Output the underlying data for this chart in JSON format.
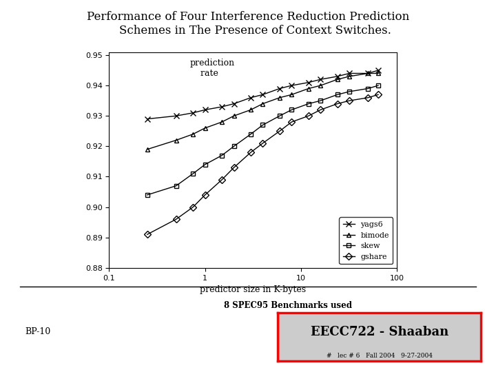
{
  "title": "Performance of Four Interference Reduction Prediction\n    Schemes in The Presence of Context Switches.",
  "xlabel": "predictor size in K-bytes",
  "xlim": [
    0.1,
    100
  ],
  "ylim": [
    0.88,
    0.951
  ],
  "yticks": [
    0.88,
    0.89,
    0.9,
    0.91,
    0.92,
    0.93,
    0.94,
    0.95
  ],
  "yags6": {
    "x": [
      0.25,
      0.5,
      0.75,
      1.0,
      1.5,
      2.0,
      3.0,
      4.0,
      6.0,
      8.0,
      12.0,
      16.0,
      24.0,
      32.0,
      50.0,
      64.0
    ],
    "y": [
      0.929,
      0.93,
      0.931,
      0.932,
      0.933,
      0.934,
      0.936,
      0.937,
      0.939,
      0.94,
      0.941,
      0.942,
      0.943,
      0.944,
      0.944,
      0.945
    ],
    "label": "yags6"
  },
  "bimode": {
    "x": [
      0.25,
      0.5,
      0.75,
      1.0,
      1.5,
      2.0,
      3.0,
      4.0,
      6.0,
      8.0,
      12.0,
      16.0,
      24.0,
      32.0,
      50.0,
      64.0
    ],
    "y": [
      0.919,
      0.922,
      0.924,
      0.926,
      0.928,
      0.93,
      0.932,
      0.934,
      0.936,
      0.937,
      0.939,
      0.94,
      0.942,
      0.943,
      0.944,
      0.944
    ],
    "label": "bimode"
  },
  "skew": {
    "x": [
      0.25,
      0.5,
      0.75,
      1.0,
      1.5,
      2.0,
      3.0,
      4.0,
      6.0,
      8.0,
      12.0,
      16.0,
      24.0,
      32.0,
      50.0,
      64.0
    ],
    "y": [
      0.904,
      0.907,
      0.911,
      0.914,
      0.917,
      0.92,
      0.924,
      0.927,
      0.93,
      0.932,
      0.934,
      0.935,
      0.937,
      0.938,
      0.939,
      0.94
    ],
    "label": "skew"
  },
  "gshare": {
    "x": [
      0.25,
      0.5,
      0.75,
      1.0,
      1.5,
      2.0,
      3.0,
      4.0,
      6.0,
      8.0,
      12.0,
      16.0,
      24.0,
      32.0,
      50.0,
      64.0
    ],
    "y": [
      0.891,
      0.896,
      0.9,
      0.904,
      0.909,
      0.913,
      0.918,
      0.921,
      0.925,
      0.928,
      0.93,
      0.932,
      0.934,
      0.935,
      0.936,
      0.937
    ],
    "label": "gshare"
  },
  "footer_text": "8 SPEC95 Benchmarks used",
  "eecc_text": "EECC722 - Shaaban",
  "bp_text": "BP-10",
  "sub_text": "#   lec # 6   Fall 2004   9-27-2004",
  "bg_color": "#ffffff"
}
